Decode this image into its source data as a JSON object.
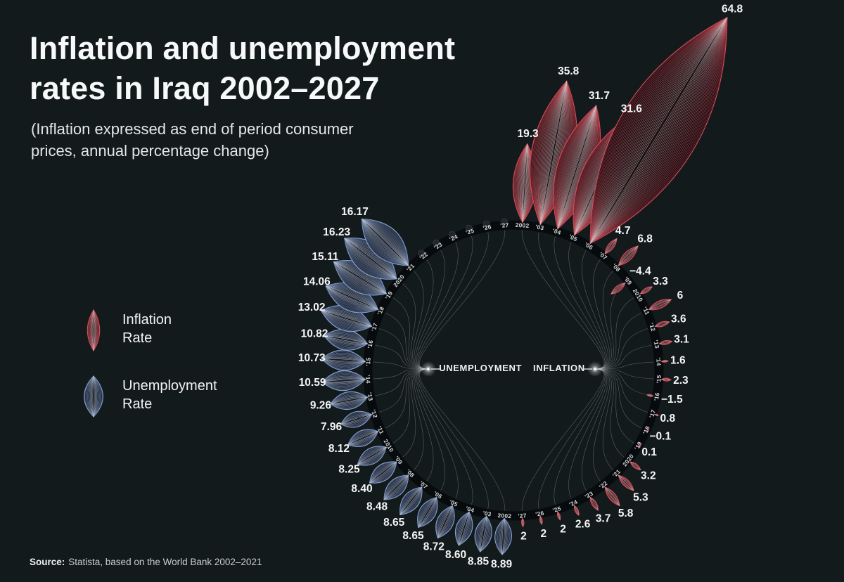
{
  "title": {
    "lines": [
      "Inflation and unemployment",
      "rates in Iraq 2002–2027"
    ]
  },
  "subtitle": {
    "lines": [
      "(Inflation expressed as end of period consumer",
      "prices, annual percentage change)"
    ]
  },
  "legend": {
    "items": [
      {
        "lines": [
          "Inflation",
          "Rate"
        ]
      },
      {
        "lines": [
          "Unemployment",
          "Rate"
        ]
      }
    ]
  },
  "center_labels": {
    "left": "UNEMPLOYMENT",
    "right": "INFLATION"
  },
  "source": {
    "label": "Source:",
    "text": "Statista, based on the World Bank 2002–2021"
  },
  "chart_data": {
    "type": "radial-petal",
    "title": "Inflation and unemployment rates in Iraq 2002–2027",
    "unit": "percent",
    "year_labels": [
      "2002",
      "'03",
      "'04",
      "'05",
      "'06",
      "'07",
      "'08",
      "'09",
      "2010",
      "'11",
      "'12",
      "'13",
      "'14",
      "'15",
      "'16",
      "'17",
      "'18",
      "'19",
      "2020",
      "'21",
      "'22",
      "'23",
      "'24",
      "'25",
      "'26",
      "'27"
    ],
    "legend_position": "left-middle",
    "series": [
      {
        "name": "Inflation Rate",
        "side": "right",
        "color": "#b5303e",
        "years": [
          2002,
          2003,
          2004,
          2005,
          2006,
          2007,
          2008,
          2009,
          2010,
          2011,
          2012,
          2013,
          2014,
          2015,
          2016,
          2017,
          2018,
          2019,
          2020,
          2021,
          2022,
          2023,
          2024,
          2025,
          2026,
          2027
        ],
        "values": [
          19.3,
          35.8,
          31.7,
          31.6,
          64.8,
          4.7,
          6.8,
          -4.4,
          3.3,
          6,
          3.6,
          3.1,
          1.6,
          2.3,
          -1.5,
          0.8,
          -0.1,
          0.1,
          3.2,
          5.3,
          5.8,
          3.7,
          2.6,
          2,
          2,
          2
        ],
        "labels": [
          "19.3",
          "35.8",
          "31.7",
          "31.6",
          "64.8",
          "4.7",
          "6.8",
          "−4.4",
          "3.3",
          "6",
          "3.6",
          "3.1",
          "1.6",
          "2.3",
          "−1.5",
          "0.8",
          "−0.1",
          "0.1",
          "3.2",
          "5.3",
          "5.8",
          "3.7",
          "2.6",
          "2",
          "2",
          "2"
        ]
      },
      {
        "name": "Unemployment Rate",
        "side": "left",
        "color": "#56709f",
        "years": [
          2002,
          2003,
          2004,
          2005,
          2006,
          2007,
          2008,
          2009,
          2010,
          2011,
          2012,
          2013,
          2014,
          2015,
          2016,
          2017,
          2018,
          2019,
          2020,
          2021
        ],
        "values": [
          8.89,
          8.85,
          8.6,
          8.72,
          8.65,
          8.65,
          8.48,
          8.4,
          8.25,
          8.12,
          7.96,
          9.26,
          10.59,
          10.73,
          10.82,
          13.02,
          14.06,
          15.11,
          16.23,
          16.17
        ],
        "labels": [
          "8.89",
          "8.85",
          "8.60",
          "8.72",
          "8.65",
          "8.65",
          "8.48",
          "8.40",
          "8.25",
          "8.12",
          "7.96",
          "9.26",
          "10.59",
          "10.73",
          "10.82",
          "13.02",
          "14.06",
          "15.11",
          "16.23",
          "16.17"
        ]
      }
    ]
  }
}
